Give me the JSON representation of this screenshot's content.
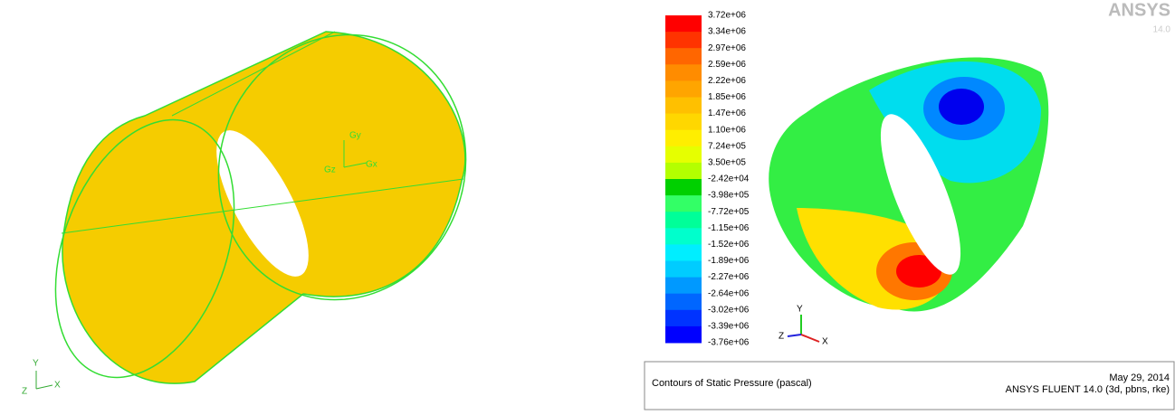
{
  "geometry_view": {
    "triad": {
      "y": "Y",
      "z": "Z",
      "x": "X"
    },
    "gravity": {
      "y": "Gy",
      "z": "Gz",
      "x": "Gx"
    }
  },
  "contour_view": {
    "logo": {
      "name": "ANSYS",
      "version": "14.0"
    },
    "colorbar": {
      "labels": [
        "3.72e+06",
        "3.34e+06",
        "2.97e+06",
        "2.59e+06",
        "2.22e+06",
        "1.85e+06",
        "1.47e+06",
        "1.10e+06",
        "7.24e+05",
        "3.50e+05",
        "-2.42e+04",
        "-3.98e+05",
        "-7.72e+05",
        "-1.15e+06",
        "-1.52e+06",
        "-1.89e+06",
        "-2.27e+06",
        "-2.64e+06",
        "-3.02e+06",
        "-3.39e+06",
        "-3.76e+06"
      ],
      "colors": [
        "#ff0000",
        "#ff3300",
        "#ff6600",
        "#ff8c00",
        "#ffa500",
        "#ffc000",
        "#ffd700",
        "#ffee00",
        "#e6ff00",
        "#b4ff00",
        "#00d000",
        "#33ff66",
        "#00ff99",
        "#00ffcc",
        "#00eeff",
        "#00ccff",
        "#0099ff",
        "#0066ff",
        "#0033ff",
        "#0000ff"
      ]
    },
    "triad": {
      "y": "Y",
      "z": "Z",
      "x": "X"
    },
    "footer": {
      "title": "Contours of Static Pressure (pascal)",
      "date": "May 29, 2014",
      "software": "ANSYS FLUENT 14.0 (3d, pbns, rke)"
    }
  }
}
